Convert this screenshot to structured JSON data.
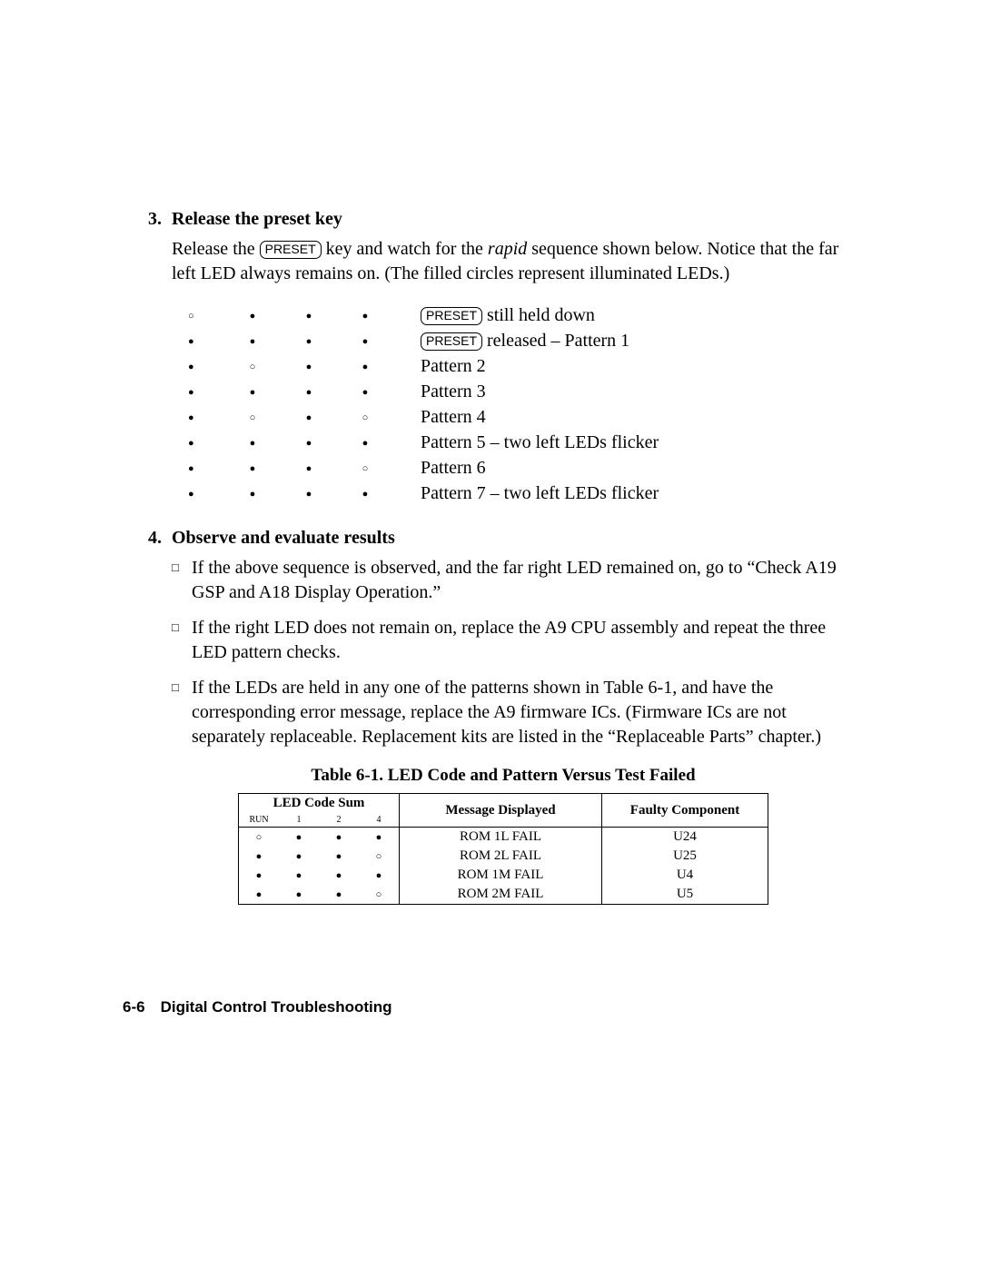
{
  "step3": {
    "number": "3.",
    "title": "Release the preset key",
    "para_parts": {
      "p1": "Release the ",
      "preset": "PRESET",
      "p2": " key and watch for the ",
      "rapid": "rapid",
      "p3": " sequence shown below. Notice that the far left LED always remains on. (The filled circles represent illuminated LEDs.)"
    }
  },
  "patterns": [
    {
      "leds": [
        "open",
        "filled",
        "filled",
        "filled"
      ],
      "has_preset": true,
      "preset": "PRESET",
      "label": " still held down"
    },
    {
      "leds": [
        "filled",
        "filled",
        "filled",
        "filled"
      ],
      "has_preset": true,
      "preset": "PRESET",
      "label": " released – Pattern 1"
    },
    {
      "leds": [
        "filled",
        "open",
        "filled",
        "filled"
      ],
      "has_preset": false,
      "label": "Pattern 2"
    },
    {
      "leds": [
        "filled",
        "filled",
        "filled",
        "filled"
      ],
      "has_preset": false,
      "label": "Pattern 3"
    },
    {
      "leds": [
        "filled",
        "open",
        "filled",
        "open"
      ],
      "has_preset": false,
      "label": "Pattern 4"
    },
    {
      "leds": [
        "filled",
        "filled",
        "filled",
        "filled"
      ],
      "has_preset": false,
      "label": "Pattern 5 – two left LEDs flicker"
    },
    {
      "leds": [
        "filled",
        "filled",
        "filled",
        "open"
      ],
      "has_preset": false,
      "label": "Pattern 6"
    },
    {
      "leds": [
        "filled",
        "filled",
        "filled",
        "filled"
      ],
      "has_preset": false,
      "label": "Pattern 7 – two left LEDs flicker"
    }
  ],
  "step4": {
    "number": "4.",
    "title": "Observe and evaluate results",
    "items": [
      "If the above sequence is observed, and the far right LED remained on, go to “Check A19 GSP and A18 Display Operation.”",
      "If the right LED does not remain on, replace the A9 CPU assembly and repeat the three LED pattern checks.",
      "If the LEDs are held in any one of the patterns shown in Table 6-1, and have the corresponding error message, replace the A9 firmware ICs. (Firmware ICs are not separately replaceable. Replacement kits are listed in the “Replaceable Parts” chapter.)"
    ]
  },
  "table": {
    "caption": "Table 6-1. LED Code and Pattern Versus Test Failed",
    "header_group": "LED Code Sum",
    "header_msg": "Message Displayed",
    "header_comp": "Faulty Component",
    "sub_headers": [
      "RUN",
      "1",
      "2",
      "4"
    ],
    "rows": [
      {
        "leds": [
          "open",
          "filled",
          "filled",
          "filled"
        ],
        "msg": "ROM 1L FAIL",
        "comp": "U24"
      },
      {
        "leds": [
          "filled",
          "filled",
          "filled",
          "open"
        ],
        "msg": "ROM 2L FAIL",
        "comp": "U25"
      },
      {
        "leds": [
          "filled",
          "filled",
          "filled",
          "filled"
        ],
        "msg": "ROM 1M FAIL",
        "comp": "U4"
      },
      {
        "leds": [
          "filled",
          "filled",
          "filled",
          "open"
        ],
        "msg": "ROM 2M FAIL",
        "comp": "U5"
      }
    ]
  },
  "footer": "6-6 Digital Control Troubleshooting"
}
